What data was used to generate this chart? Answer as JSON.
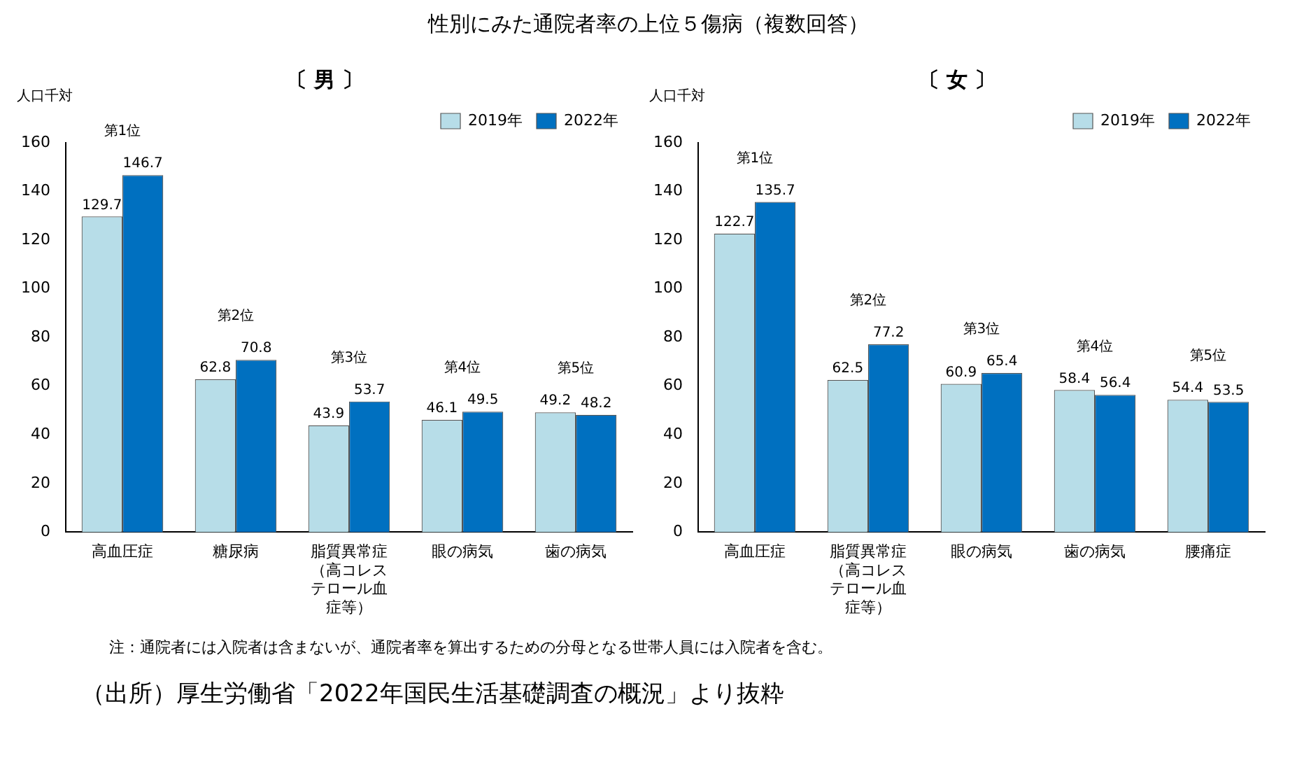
{
  "chart_data": [
    {
      "type": "other",
      "title": "性別にみた通院者率の上位５傷病（複数回答）",
      "annotations": [
        "注：通院者には入院者は含まないが、通院者率を算出するための分母となる世帯人員には入院者を含む。",
        "（出所）厚生労働省「2022年国民生活基礎調査の概況」より抜粋"
      ]
    },
    {
      "type": "bar",
      "title": "〔 男 〕",
      "ylabel": "人口千対",
      "categories": [
        "高血圧症",
        "糖尿病",
        "脂質異常症（高コレステロール血症等）",
        "眼の病気",
        "歯の病気"
      ],
      "series": [
        {
          "name": "2019年",
          "color": "#b7dde8",
          "values": [
            129.7,
            62.8,
            43.9,
            46.1,
            49.2
          ]
        },
        {
          "name": "2022年",
          "color": "#0070c0",
          "values": [
            146.7,
            70.8,
            53.7,
            49.5,
            48.2
          ]
        }
      ],
      "ylim": [
        0,
        160
      ],
      "yticks": [
        0,
        20,
        40,
        60,
        80,
        100,
        120,
        140,
        160
      ],
      "data_labels": true,
      "legend": "top right",
      "annotations": [
        {
          "text": "第1位",
          "x": "高血圧症",
          "y": 146.7
        },
        {
          "text": "第2位",
          "x": "糖尿病",
          "y": 70.8
        },
        {
          "text": "第3位",
          "x": "脂質異常症（高コレステロール血症等）",
          "y": 53.7
        },
        {
          "text": "第4位",
          "x": "眼の病気",
          "y": 49.5
        },
        {
          "text": "第5位",
          "x": "歯の病気",
          "y": 49.2
        }
      ]
    },
    {
      "type": "bar",
      "title": "〔 女 〕",
      "ylabel": "人口千対",
      "categories": [
        "高血圧症",
        "脂質異常症（高コレステロール血症等）",
        "眼の病気",
        "歯の病気",
        "腰痛症"
      ],
      "series": [
        {
          "name": "2019年",
          "color": "#b7dde8",
          "values": [
            122.7,
            62.5,
            60.9,
            58.4,
            54.4
          ]
        },
        {
          "name": "2022年",
          "color": "#0070c0",
          "values": [
            135.7,
            77.2,
            65.4,
            56.4,
            53.5
          ]
        }
      ],
      "ylim": [
        0,
        160
      ],
      "yticks": [
        0,
        20,
        40,
        60,
        80,
        100,
        120,
        140,
        160
      ],
      "data_labels": true,
      "legend": "top right",
      "annotations": [
        {
          "text": "第1位",
          "x": "高血圧症",
          "y": 135.7
        },
        {
          "text": "第2位",
          "x": "脂質異常症（高コレステロール血症等）",
          "y": 77.2
        },
        {
          "text": "第3位",
          "x": "眼の病気",
          "y": 65.4
        },
        {
          "text": "第4位",
          "x": "歯の病気",
          "y": 58.4
        },
        {
          "text": "第5位",
          "x": "腰痛症",
          "y": 54.4
        }
      ]
    }
  ]
}
